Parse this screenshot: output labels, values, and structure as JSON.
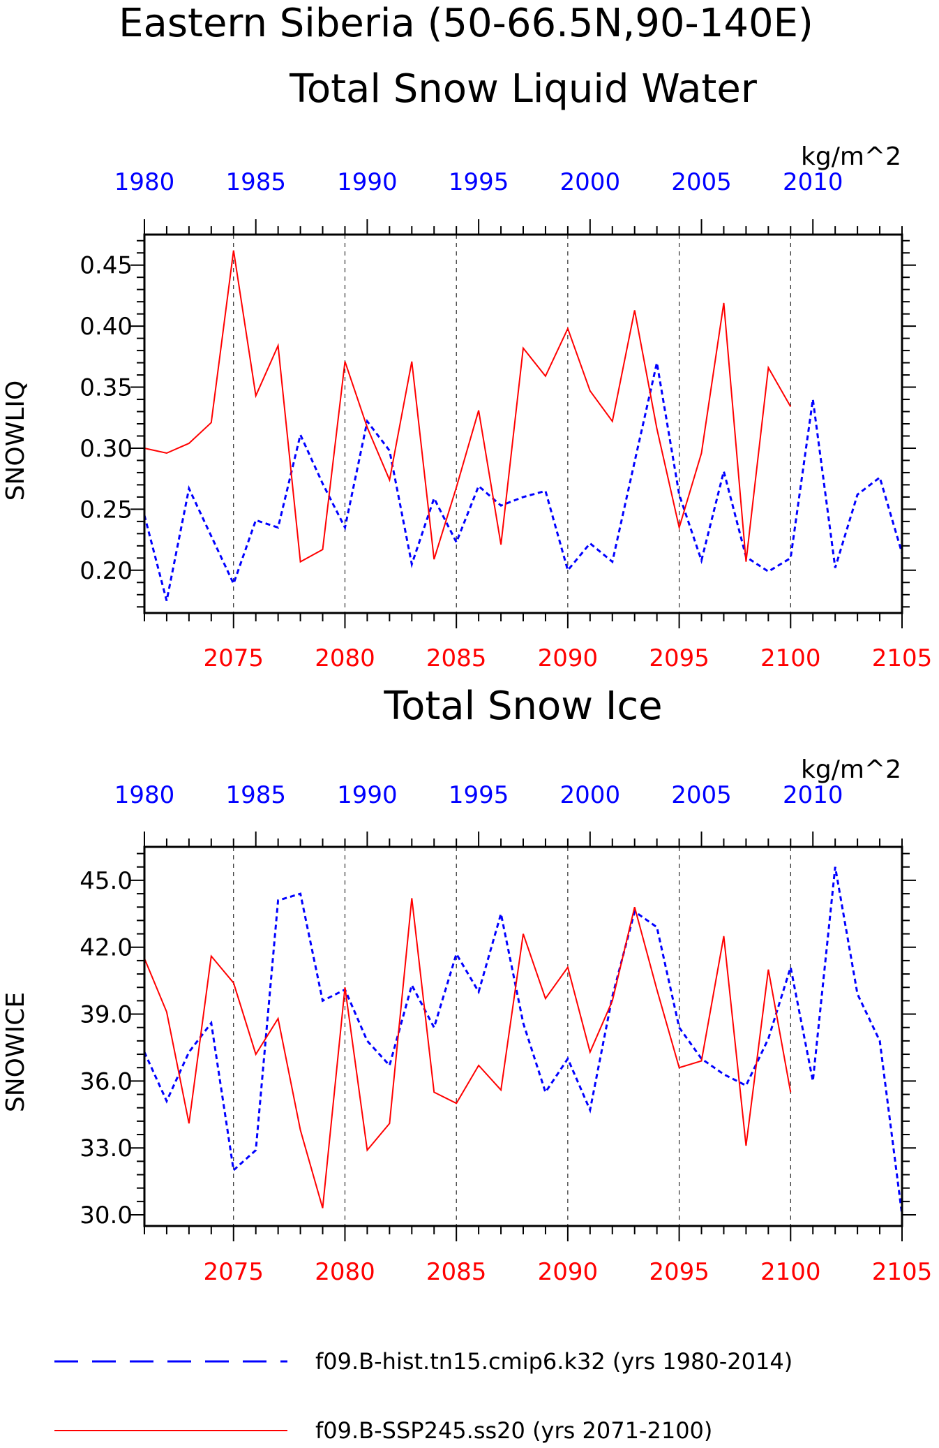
{
  "figure": {
    "title_line1": "Eastern Siberia (50-66.5N,90-140E)",
    "colors": {
      "hist": "#0000ff",
      "ssp": "#ff0000",
      "axis": "#000000"
    }
  },
  "legend": {
    "hist_label": "f09.B-hist.tn15.cmip6.k32 (yrs 1980-2014)",
    "ssp_label": "f09.B-SSP245.ss20 (yrs 2071-2100)"
  },
  "chart_data": [
    {
      "type": "line",
      "title": "Total Snow Liquid Water",
      "ylabel": "SNOWLIQ",
      "units": "kg/m^2",
      "ylim": [
        0.165,
        0.475
      ],
      "yticks": [
        0.2,
        0.25,
        0.3,
        0.35,
        0.4,
        0.45
      ],
      "ytick_labels": [
        "0.20",
        "0.25",
        "0.30",
        "0.35",
        "0.40",
        "0.45"
      ],
      "top_axis": {
        "range": [
          1980,
          2014
        ],
        "ticks": [
          1980,
          1985,
          1990,
          1995,
          2000,
          2005,
          2010
        ],
        "tick_labels": [
          "1980",
          "1985",
          "1990",
          "1995",
          "2000",
          "2005",
          "2010"
        ]
      },
      "bottom_axis": {
        "range": [
          2071,
          2105
        ],
        "ticks": [
          2075,
          2080,
          2085,
          2090,
          2095,
          2100,
          2105
        ],
        "tick_labels": [
          "2075",
          "2080",
          "2085",
          "2090",
          "2095",
          "2100",
          "2105"
        ]
      },
      "grid": "dashed vertical lines at bottom-axis ticks",
      "series": [
        {
          "axis": "top",
          "style": "dashed",
          "x": [
            1980,
            1981,
            1982,
            1983,
            1984,
            1985,
            1986,
            1987,
            1988,
            1989,
            1990,
            1991,
            1992,
            1993,
            1994,
            1995,
            1996,
            1997,
            1998,
            1999,
            2000,
            2001,
            2002,
            2003,
            2004,
            2005,
            2006,
            2007,
            2008,
            2009,
            2010,
            2011,
            2012,
            2013,
            2014
          ],
          "values": [
            0.245,
            0.175,
            0.267,
            0.228,
            0.189,
            0.241,
            0.235,
            0.311,
            0.271,
            0.235,
            0.322,
            0.298,
            0.205,
            0.259,
            0.223,
            0.269,
            0.253,
            0.26,
            0.265,
            0.2,
            0.222,
            0.207,
            0.289,
            0.37,
            0.262,
            0.208,
            0.281,
            0.211,
            0.199,
            0.21,
            0.34,
            0.202,
            0.262,
            0.276,
            0.214
          ]
        },
        {
          "axis": "bottom",
          "style": "solid",
          "x": [
            2071,
            2072,
            2073,
            2074,
            2075,
            2076,
            2077,
            2078,
            2079,
            2080,
            2081,
            2082,
            2083,
            2084,
            2085,
            2086,
            2087,
            2088,
            2089,
            2090,
            2091,
            2092,
            2093,
            2094,
            2095,
            2096,
            2097,
            2098,
            2099,
            2100
          ],
          "values": [
            0.3,
            0.296,
            0.304,
            0.321,
            0.462,
            0.343,
            0.384,
            0.207,
            0.217,
            0.371,
            0.317,
            0.274,
            0.371,
            0.209,
            0.268,
            0.331,
            0.221,
            0.382,
            0.359,
            0.398,
            0.347,
            0.322,
            0.413,
            0.316,
            0.235,
            0.296,
            0.419,
            0.207,
            0.366,
            0.334
          ]
        }
      ]
    },
    {
      "type": "line",
      "title": "Total Snow Ice",
      "ylabel": "SNOWICE",
      "units": "kg/m^2",
      "ylim": [
        29.5,
        46.5
      ],
      "yticks": [
        30.0,
        33.0,
        36.0,
        39.0,
        42.0,
        45.0
      ],
      "ytick_labels": [
        "30.0",
        "33.0",
        "36.0",
        "39.0",
        "42.0",
        "45.0"
      ],
      "top_axis": {
        "range": [
          1980,
          2014
        ],
        "ticks": [
          1980,
          1985,
          1990,
          1995,
          2000,
          2005,
          2010
        ],
        "tick_labels": [
          "1980",
          "1985",
          "1990",
          "1995",
          "2000",
          "2005",
          "2010"
        ]
      },
      "bottom_axis": {
        "range": [
          2071,
          2105
        ],
        "ticks": [
          2075,
          2080,
          2085,
          2090,
          2095,
          2100,
          2105
        ],
        "tick_labels": [
          "2075",
          "2080",
          "2085",
          "2090",
          "2095",
          "2100",
          "2105"
        ]
      },
      "grid": "dashed vertical lines at bottom-axis ticks",
      "series": [
        {
          "axis": "top",
          "style": "dashed",
          "x": [
            1980,
            1981,
            1982,
            1983,
            1984,
            1985,
            1986,
            1987,
            1988,
            1989,
            1990,
            1991,
            1992,
            1993,
            1994,
            1995,
            1996,
            1997,
            1998,
            1999,
            2000,
            2001,
            2002,
            2003,
            2004,
            2005,
            2006,
            2007,
            2008,
            2009,
            2010,
            2011,
            2012,
            2013,
            2014
          ],
          "values": [
            37.3,
            35.1,
            37.3,
            38.6,
            32.0,
            32.9,
            44.1,
            44.4,
            39.6,
            40.1,
            37.8,
            36.7,
            40.3,
            38.4,
            41.7,
            40.0,
            43.5,
            38.6,
            35.5,
            37.0,
            34.7,
            39.8,
            43.6,
            42.9,
            38.4,
            37.0,
            36.3,
            35.8,
            37.9,
            41.1,
            36.0,
            45.6,
            39.9,
            37.8,
            30.0
          ]
        },
        {
          "axis": "bottom",
          "style": "solid",
          "x": [
            2071,
            2072,
            2073,
            2074,
            2075,
            2076,
            2077,
            2078,
            2079,
            2080,
            2081,
            2082,
            2083,
            2084,
            2085,
            2086,
            2087,
            2088,
            2089,
            2090,
            2091,
            2092,
            2093,
            2094,
            2095,
            2096,
            2097,
            2098,
            2099,
            2100
          ],
          "values": [
            41.5,
            39.1,
            34.1,
            41.6,
            40.4,
            37.2,
            38.8,
            33.8,
            30.3,
            40.2,
            32.9,
            34.1,
            44.2,
            35.5,
            35.0,
            36.7,
            35.6,
            42.6,
            39.7,
            41.1,
            37.3,
            39.6,
            43.8,
            40.1,
            36.6,
            36.9,
            42.5,
            33.1,
            41.0,
            35.5
          ]
        }
      ]
    }
  ]
}
